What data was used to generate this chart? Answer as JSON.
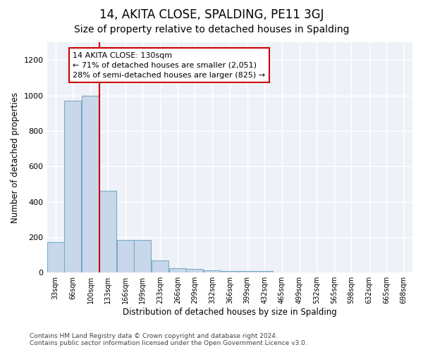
{
  "title": "14, AKITA CLOSE, SPALDING, PE11 3GJ",
  "subtitle": "Size of property relative to detached houses in Spalding",
  "xlabel": "Distribution of detached houses by size in Spalding",
  "ylabel": "Number of detached properties",
  "bar_edges": [
    33,
    66,
    100,
    133,
    166,
    199,
    233,
    266,
    299,
    332,
    366,
    399,
    432,
    465,
    499,
    532,
    565,
    598,
    632,
    665,
    698
  ],
  "bar_heights": [
    170,
    970,
    1000,
    460,
    185,
    185,
    70,
    25,
    20,
    14,
    10,
    8,
    10,
    0,
    0,
    0,
    0,
    0,
    0,
    0
  ],
  "bar_color": "#c8d8ea",
  "bar_edge_color": "#7aaac8",
  "property_line_x": 133,
  "property_line_color": "#cc0000",
  "annotation_text": "14 AKITA CLOSE: 130sqm\n← 71% of detached houses are smaller (2,051)\n28% of semi-detached houses are larger (825) →",
  "annotation_box_color": "#ffffff",
  "annotation_box_edge_color": "#cc0000",
  "ylim": [
    0,
    1300
  ],
  "yticks": [
    0,
    200,
    400,
    600,
    800,
    1000,
    1200
  ],
  "background_color": "#ffffff",
  "plot_bg_color": "#eef2f8",
  "grid_color": "#ffffff",
  "footer_text": "Contains HM Land Registry data © Crown copyright and database right 2024.\nContains public sector information licensed under the Open Government Licence v3.0.",
  "title_fontsize": 12,
  "subtitle_fontsize": 10,
  "tick_label_fontsize": 7,
  "ylabel_fontsize": 8.5,
  "xlabel_fontsize": 8.5,
  "footer_fontsize": 6.5
}
